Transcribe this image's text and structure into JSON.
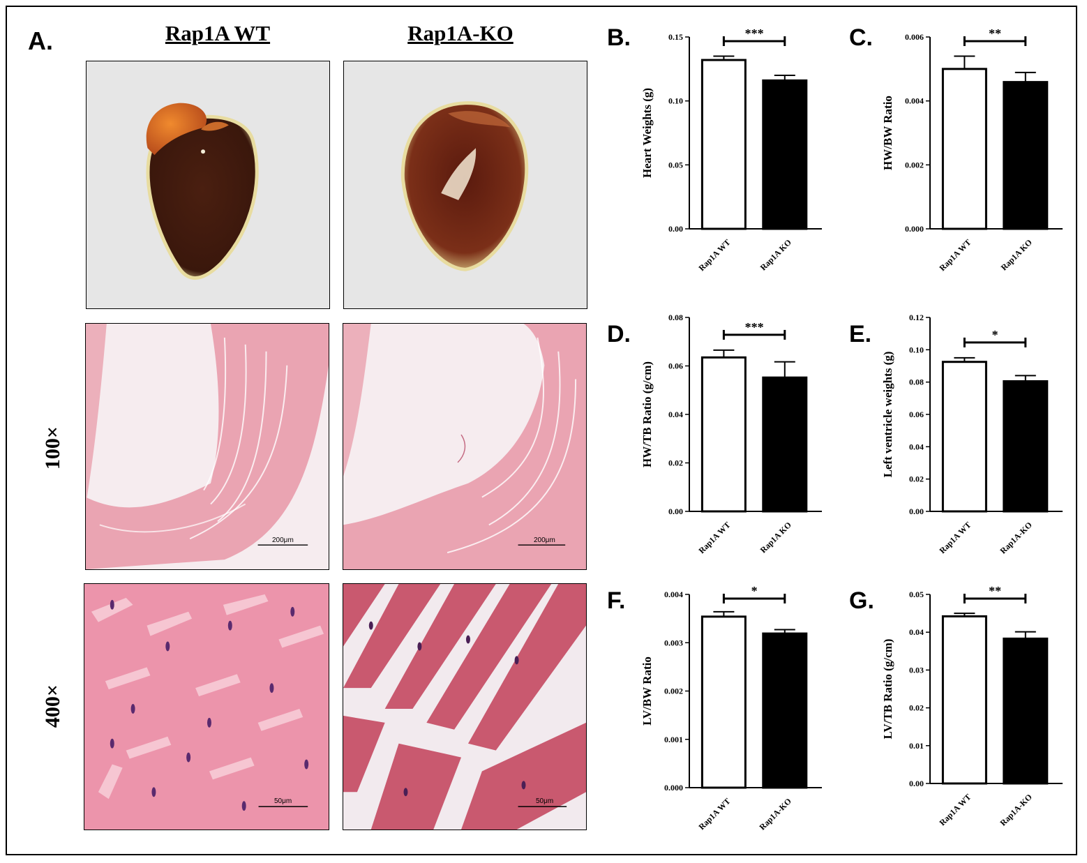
{
  "figure": {
    "panel_a": {
      "letter": "A.",
      "col_wt": "Rap1A WT",
      "col_ko": "Rap1A-KO",
      "row_100": "100×",
      "row_400": "400×",
      "scale_100": "200μm",
      "scale_400": "50μm"
    },
    "colors": {
      "wt_bar": "#ffffff",
      "ko_bar": "#000000",
      "tissue_pink": "#e9a3b0",
      "heart_dark": "#4a1f10",
      "bg_gray": "#e6e6e6"
    }
  },
  "chart_data": [
    {
      "id": "B",
      "letter": "B.",
      "type": "bar",
      "categories": [
        "Rap1A WT",
        "Rap1A KO"
      ],
      "values": [
        0.132,
        0.116
      ],
      "errors": [
        0.003,
        0.004
      ],
      "ylabel": "Heart Weights (g)",
      "ylim": [
        0,
        0.15
      ],
      "yticks": [
        0.0,
        0.05,
        0.1,
        0.15
      ],
      "yticklabels": [
        "0.00",
        "0.05",
        "0.10",
        "0.15"
      ],
      "significance": "***"
    },
    {
      "id": "C",
      "letter": "C.",
      "type": "bar",
      "categories": [
        "Rap1A WT",
        "Rap1A KO"
      ],
      "values": [
        0.005,
        0.00459
      ],
      "errors": [
        0.0004,
        0.0003
      ],
      "ylabel": "HW/BW Ratio",
      "ylim": [
        0,
        0.006
      ],
      "yticks": [
        0,
        0.002,
        0.004,
        0.006
      ],
      "yticklabels": [
        "0.000",
        "0.002",
        "0.004",
        "0.006"
      ],
      "significance": "**"
    },
    {
      "id": "D",
      "letter": "D.",
      "type": "bar",
      "categories": [
        "Rap1A WT",
        "Rap1A KO"
      ],
      "values": [
        0.0635,
        0.0552
      ],
      "errors": [
        0.003,
        0.0065
      ],
      "ylabel": "HW/TB Ratio (g/cm)",
      "ylim": [
        0,
        0.08
      ],
      "yticks": [
        0,
        0.02,
        0.04,
        0.06,
        0.08
      ],
      "yticklabels": [
        "0.00",
        "0.02",
        "0.04",
        "0.06",
        "0.08"
      ],
      "significance": "***"
    },
    {
      "id": "E",
      "letter": "E.",
      "type": "bar",
      "categories": [
        "Rap1A WT",
        "Rap1A-KO"
      ],
      "values": [
        0.0925,
        0.0805
      ],
      "errors": [
        0.0025,
        0.0035
      ],
      "ylabel": "Left ventricle weights (g)",
      "ylim": [
        0,
        0.12
      ],
      "yticks": [
        0,
        0.02,
        0.04,
        0.06,
        0.08,
        0.1,
        0.12
      ],
      "yticklabels": [
        "0.00",
        "0.02",
        "0.04",
        "0.06",
        "0.08",
        "0.10",
        "0.12"
      ],
      "significance": "*"
    },
    {
      "id": "F",
      "letter": "F.",
      "type": "bar",
      "categories": [
        "Rap1A WT",
        "Rap1A-KO"
      ],
      "values": [
        0.00354,
        0.00319
      ],
      "errors": [
        0.0001,
        8e-05
      ],
      "ylabel": "LV/BW Ratio",
      "ylim": [
        0,
        0.004
      ],
      "yticks": [
        0,
        0.001,
        0.002,
        0.003,
        0.004
      ],
      "yticklabels": [
        "0.000",
        "0.001",
        "0.002",
        "0.003",
        "0.004"
      ],
      "significance": "*"
    },
    {
      "id": "G",
      "letter": "G.",
      "type": "bar",
      "categories": [
        "Rap1A WT",
        "Rap1A-KO"
      ],
      "values": [
        0.0442,
        0.0383
      ],
      "errors": [
        0.0008,
        0.0018
      ],
      "ylabel": "LV/TB Ratio (g/cm)",
      "ylim": [
        0,
        0.05
      ],
      "yticks": [
        0,
        0.01,
        0.02,
        0.03,
        0.04,
        0.05
      ],
      "yticklabels": [
        "0.00",
        "0.01",
        "0.02",
        "0.03",
        "0.04",
        "0.05"
      ],
      "significance": "**"
    }
  ]
}
